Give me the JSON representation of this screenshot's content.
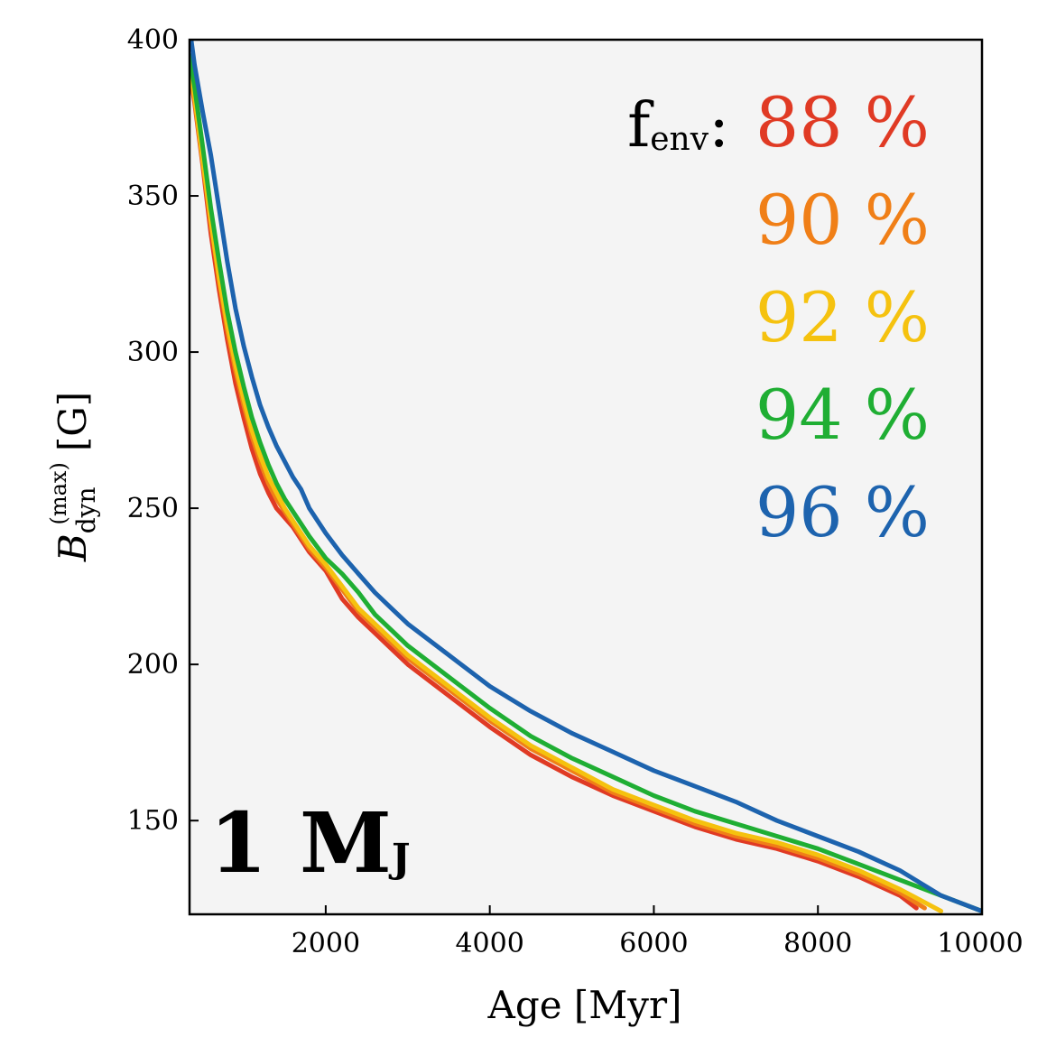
{
  "chart_data": {
    "type": "line",
    "xlabel": "Age [Myr]",
    "ylabel": {
      "symbol": "B",
      "sub": "dyn",
      "sup": "(max)",
      "unit": "[G]"
    },
    "xlim": [
      340,
      10000
    ],
    "ylim": [
      120,
      400
    ],
    "xticks": [
      2000,
      4000,
      6000,
      8000,
      10000
    ],
    "yticks": [
      150,
      200,
      250,
      300,
      350,
      400
    ],
    "grid": false,
    "background": "#f4f4f4",
    "legend": {
      "placement": "top-right",
      "prefix": "f",
      "prefix_sub": "env",
      "colon": ":"
    },
    "mass_label": {
      "number": "1",
      "unit": "M",
      "unit_sub": "J",
      "placement": "bottom-left"
    },
    "series": [
      {
        "name": "88 %",
        "color": "#e03a24",
        "x": [
          340,
          400,
          500,
          600,
          700,
          800,
          900,
          1000,
          1100,
          1200,
          1300,
          1400,
          1500,
          1600,
          1700,
          1800,
          2000,
          2200,
          2400,
          2600,
          2800,
          3000,
          3500,
          4000,
          4500,
          5000,
          5500,
          6000,
          6500,
          7000,
          7500,
          8000,
          8500,
          9000,
          9200
        ],
        "y": [
          390,
          380,
          360,
          338,
          320,
          304,
          290,
          279,
          269,
          261,
          255,
          250,
          247,
          244,
          240,
          236,
          230,
          221,
          215,
          210,
          205,
          200,
          190,
          180,
          171,
          164,
          158,
          153,
          148,
          144,
          141,
          137,
          132,
          126,
          122
        ]
      },
      {
        "name": "90 %",
        "color": "#f07f17",
        "x": [
          340,
          400,
          500,
          600,
          700,
          800,
          900,
          1000,
          1100,
          1200,
          1300,
          1400,
          1500,
          1600,
          1700,
          1800,
          2000,
          2200,
          2400,
          2600,
          2800,
          3000,
          3500,
          4000,
          4500,
          5000,
          5500,
          6000,
          6500,
          7000,
          7500,
          8000,
          8500,
          9000,
          9300
        ],
        "y": [
          391,
          381,
          361,
          341,
          323,
          307,
          294,
          283,
          273,
          265,
          258,
          253,
          249,
          245,
          241,
          237,
          231,
          224,
          217,
          212,
          207,
          202,
          192,
          182,
          173,
          166,
          159,
          154,
          149,
          145,
          142,
          138,
          133,
          127,
          122
        ]
      },
      {
        "name": "92 %",
        "color": "#f5c20f",
        "x": [
          340,
          400,
          500,
          600,
          700,
          800,
          900,
          1000,
          1100,
          1200,
          1300,
          1400,
          1500,
          1600,
          1700,
          1800,
          2000,
          2200,
          2400,
          2600,
          2800,
          3000,
          3500,
          4000,
          4500,
          5000,
          5500,
          6000,
          6500,
          7000,
          7500,
          8000,
          8500,
          9000,
          9500
        ],
        "y": [
          392,
          382,
          362,
          342,
          324,
          309,
          296,
          285,
          275,
          267,
          260,
          255,
          250,
          246,
          242,
          238,
          232,
          225,
          218,
          213,
          208,
          203,
          193,
          183,
          174,
          167,
          160,
          155,
          150,
          146,
          143,
          139,
          134,
          128,
          121
        ]
      },
      {
        "name": "94 %",
        "color": "#1fae33",
        "x": [
          340,
          400,
          500,
          600,
          700,
          800,
          900,
          1000,
          1100,
          1200,
          1300,
          1400,
          1500,
          1600,
          1700,
          1800,
          2000,
          2200,
          2400,
          2600,
          2800,
          3000,
          3500,
          4000,
          4500,
          5000,
          5500,
          6000,
          6500,
          7000,
          7500,
          8000,
          8500,
          9000,
          9500,
          10000
        ],
        "y": [
          395,
          385,
          366,
          346,
          329,
          313,
          300,
          289,
          279,
          271,
          264,
          258,
          253,
          249,
          245,
          241,
          234,
          229,
          223,
          216,
          211,
          206,
          196,
          186,
          177,
          170,
          164,
          158,
          153,
          149,
          145,
          141,
          136,
          131,
          126,
          121
        ]
      },
      {
        "name": "96 %",
        "color": "#1d63ae",
        "x": [
          360,
          400,
          500,
          600,
          700,
          800,
          900,
          1000,
          1100,
          1200,
          1300,
          1400,
          1500,
          1600,
          1700,
          1800,
          2000,
          2200,
          2400,
          2600,
          2800,
          3000,
          3500,
          3800,
          4000,
          4500,
          5000,
          5500,
          6000,
          6500,
          7000,
          7500,
          8000,
          8500,
          9000,
          9500,
          10000
        ],
        "y": [
          400,
          392,
          377,
          363,
          346,
          329,
          314,
          302,
          292,
          283,
          276,
          270,
          265,
          260,
          256,
          250,
          242,
          235,
          229,
          223,
          218,
          213,
          203,
          197,
          193,
          185,
          178,
          172,
          166,
          161,
          156,
          150,
          145,
          140,
          134,
          126,
          121
        ]
      }
    ]
  }
}
